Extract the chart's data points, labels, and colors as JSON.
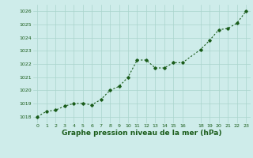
{
  "x": [
    0,
    1,
    2,
    3,
    4,
    5,
    6,
    7,
    8,
    9,
    10,
    11,
    12,
    13,
    14,
    15,
    16,
    18,
    19,
    20,
    21,
    22,
    23
  ],
  "y": [
    1018.0,
    1018.4,
    1018.5,
    1018.8,
    1019.0,
    1019.0,
    1018.9,
    1019.3,
    1020.0,
    1020.3,
    1021.0,
    1022.3,
    1022.3,
    1021.7,
    1021.7,
    1022.1,
    1022.1,
    1023.1,
    1023.8,
    1024.6,
    1024.7,
    1025.1,
    1026.0
  ],
  "ylim": [
    1017.5,
    1026.5
  ],
  "yticks": [
    1018,
    1019,
    1020,
    1021,
    1022,
    1023,
    1024,
    1025,
    1026
  ],
  "xticks": [
    0,
    1,
    2,
    3,
    4,
    5,
    6,
    7,
    8,
    9,
    10,
    11,
    12,
    13,
    14,
    15,
    16,
    18,
    19,
    20,
    21,
    22,
    23
  ],
  "xlabel": "Graphe pression niveau de la mer (hPa)",
  "line_color": "#1a5c1a",
  "marker": "D",
  "marker_size": 1.8,
  "bg_color": "#ceecea",
  "grid_color": "#aad4cc",
  "xlabel_color": "#1a5c1a",
  "tick_label_color": "#1a5c1a",
  "line_width": 0.8
}
